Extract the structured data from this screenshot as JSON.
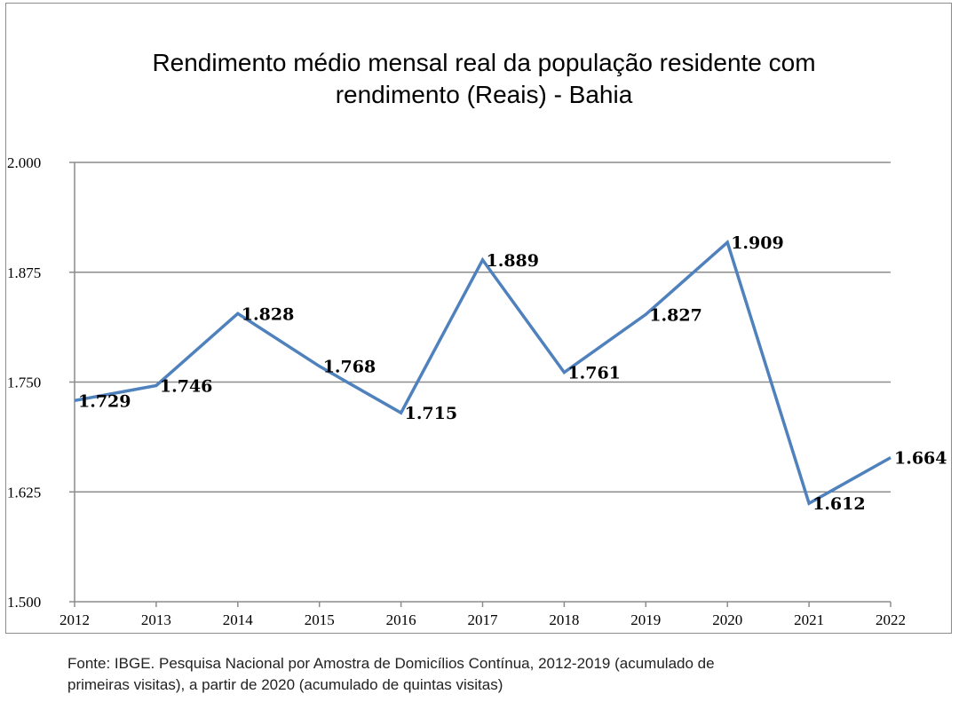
{
  "chart_data": {
    "type": "line",
    "title_lines": [
      "Rendimento médio mensal real da população residente com",
      "rendimento (Reais) - Bahia"
    ],
    "categories": [
      "2012",
      "2013",
      "2014",
      "2015",
      "2016",
      "2017",
      "2018",
      "2019",
      "2020",
      "2021",
      "2022"
    ],
    "series": [
      {
        "values": [
          1.729,
          1.746,
          1.828,
          1.768,
          1.715,
          1.889,
          1.761,
          1.827,
          1.909,
          1.612,
          1.664
        ],
        "labels": [
          "1.729",
          "1.746",
          "1.828",
          "1.768",
          "1.715",
          "1.889",
          "1.761",
          "1.827",
          "1.909",
          "1.612",
          "1.664"
        ],
        "color": "#4f81bd"
      }
    ],
    "y_ticks": [
      "1.500",
      "1.625",
      "1.750",
      "1.875",
      "2.000"
    ],
    "ylim": [
      1.5,
      2.0
    ],
    "grid": true,
    "legend": "none"
  },
  "source_lines": [
    "Fonte: IBGE. Pesquisa Nacional por Amostra de Domicílios Contínua, 2012-2019 (acumulado de",
    "primeiras visitas), a partir de 2020 (acumulado de quintas visitas)"
  ]
}
